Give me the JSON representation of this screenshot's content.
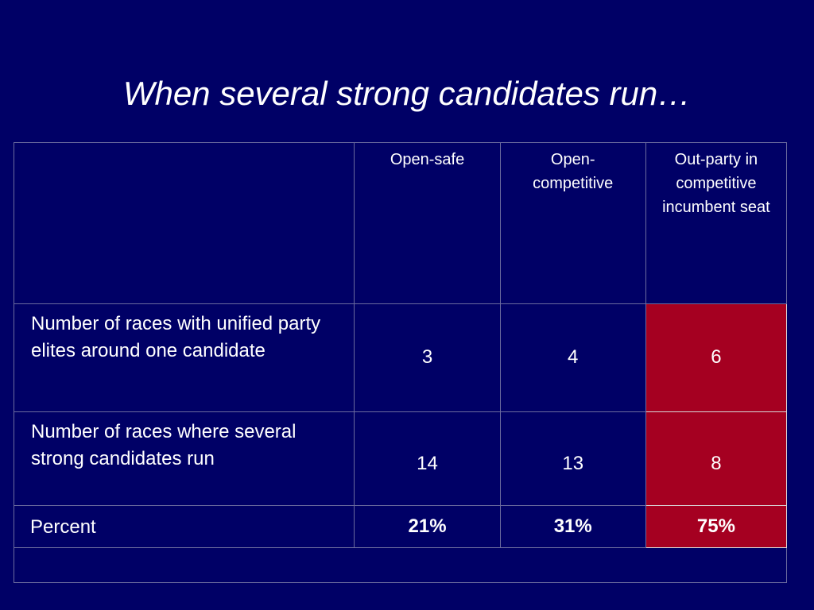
{
  "slide": {
    "title": "When several strong candidates run…"
  },
  "table": {
    "columns": [
      {
        "label": "Open-safe"
      },
      {
        "label": "Open-competitive"
      },
      {
        "label": "Out-party in competitive incumbent seat"
      }
    ],
    "rows": [
      {
        "label": "Number of races with unified party elites around one candidate",
        "values": [
          "3",
          "4",
          "6"
        ]
      },
      {
        "label": "Number of races where several strong candidates run",
        "values": [
          "14",
          "13",
          "8"
        ]
      },
      {
        "label": "Percent",
        "values": [
          "21%",
          "31%",
          "75%"
        ]
      }
    ]
  },
  "colors": {
    "background": "#000066",
    "highlight": "#a50021",
    "text": "#ffffff"
  }
}
